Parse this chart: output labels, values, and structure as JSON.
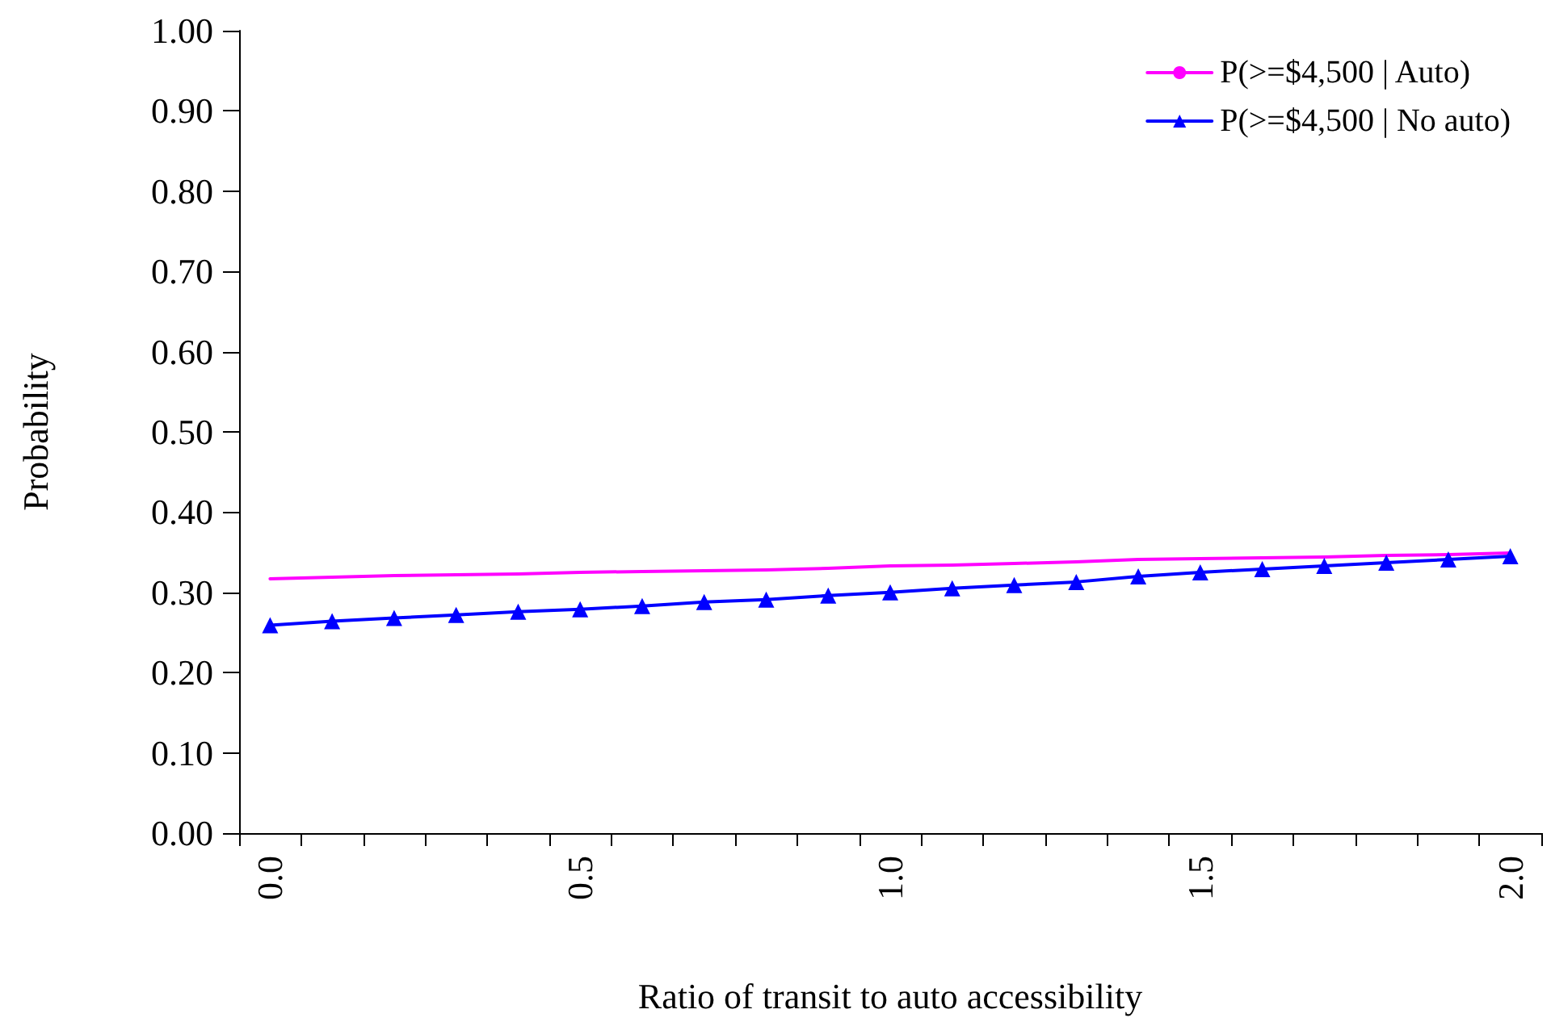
{
  "chart_data": {
    "type": "line",
    "xlabel": "Ratio of transit to auto accessibility",
    "ylabel": "Probability",
    "categories": [
      "0.0",
      null,
      null,
      null,
      null,
      "0.5",
      null,
      null,
      null,
      null,
      "1.0",
      null,
      null,
      null,
      null,
      "1.5",
      null,
      null,
      null,
      null,
      "2.0"
    ],
    "series": [
      {
        "name": "P(>=$4,500 | Auto)",
        "color": "#ff00ff",
        "marker": "none",
        "values": [
          0.317,
          0.319,
          0.321,
          0.322,
          0.323,
          0.325,
          0.326,
          0.327,
          0.328,
          0.33,
          0.333,
          0.334,
          0.336,
          0.338,
          0.341,
          0.342,
          0.343,
          0.344,
          0.346,
          0.347,
          0.349
        ]
      },
      {
        "name": "P(>=$4,500 | No auto)",
        "color": "#0000ff",
        "marker": "triangle",
        "values": [
          0.259,
          0.264,
          0.268,
          0.272,
          0.276,
          0.279,
          0.283,
          0.288,
          0.291,
          0.296,
          0.3,
          0.305,
          0.309,
          0.313,
          0.32,
          0.325,
          0.329,
          0.333,
          0.337,
          0.341,
          0.345
        ]
      }
    ],
    "ylim": [
      0,
      1
    ],
    "yticks": [
      {
        "value": 0,
        "label": "0.00"
      },
      {
        "value": 0.1,
        "label": "0.10"
      },
      {
        "value": 0.2,
        "label": "0.20"
      },
      {
        "value": 0.3,
        "label": "0.30"
      },
      {
        "value": 0.4,
        "label": "0.40"
      },
      {
        "value": 0.5,
        "label": "0.50"
      },
      {
        "value": 0.6,
        "label": "0.60"
      },
      {
        "value": 0.7,
        "label": "0.70"
      },
      {
        "value": 0.8,
        "label": "0.80"
      },
      {
        "value": 0.9,
        "label": "0.90"
      },
      {
        "value": 1,
        "label": "1.00"
      }
    ],
    "grid": false,
    "legend": "top right"
  }
}
